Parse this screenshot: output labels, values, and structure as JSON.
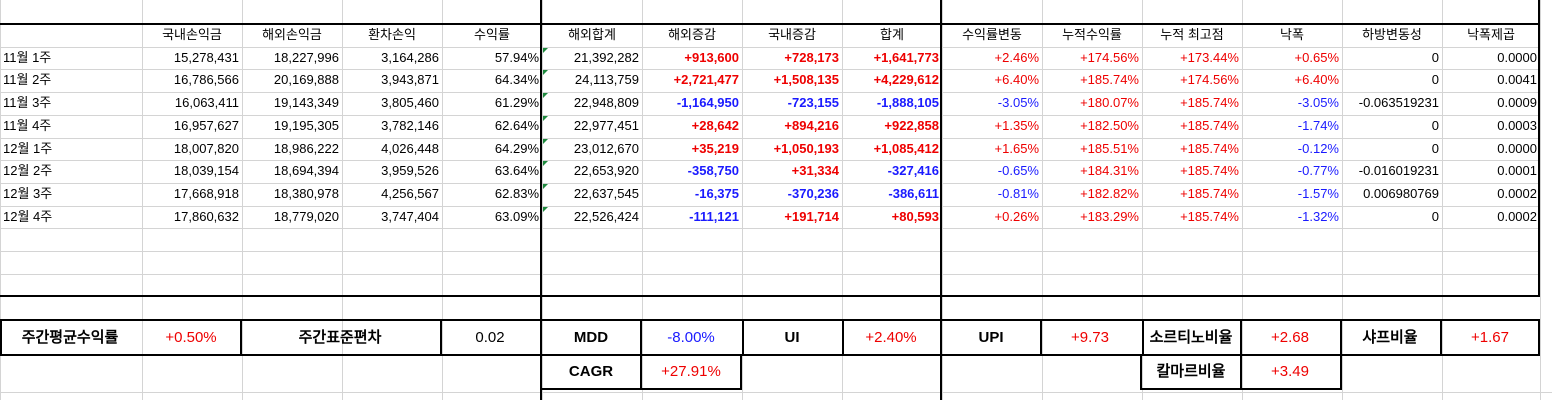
{
  "table": {
    "headers": [
      "",
      "국내손익금",
      "해외손익금",
      "환차손익",
      "수익률",
      "해외합계",
      "해외증감",
      "국내증감",
      "합계",
      "수익률변동",
      "누적수익률",
      "누적 최고점",
      "낙폭",
      "하방변동성",
      "낙폭제곱"
    ],
    "rows": [
      [
        "11월 1주",
        "15,278,431",
        "18,227,996",
        "3,164,286",
        "57.94%",
        "21,392,282",
        "+913,600",
        "+728,173",
        "+1,641,773",
        "+2.46%",
        "+174.56%",
        "+173.44%",
        "+0.65%",
        "0",
        "0.0000"
      ],
      [
        "11월 2주",
        "16,786,566",
        "20,169,888",
        "3,943,871",
        "64.34%",
        "24,113,759",
        "+2,721,477",
        "+1,508,135",
        "+4,229,612",
        "+6.40%",
        "+185.74%",
        "+174.56%",
        "+6.40%",
        "0",
        "0.0041"
      ],
      [
        "11월 3주",
        "16,063,411",
        "19,143,349",
        "3,805,460",
        "61.29%",
        "22,948,809",
        "-1,164,950",
        "-723,155",
        "-1,888,105",
        "-3.05%",
        "+180.07%",
        "+185.74%",
        "-3.05%",
        "-0.063519231",
        "0.0009"
      ],
      [
        "11월 4주",
        "16,957,627",
        "19,195,305",
        "3,782,146",
        "62.64%",
        "22,977,451",
        "+28,642",
        "+894,216",
        "+922,858",
        "+1.35%",
        "+182.50%",
        "+185.74%",
        "-1.74%",
        "0",
        "0.0003"
      ],
      [
        "12월 1주",
        "18,007,820",
        "18,986,222",
        "4,026,448",
        "64.29%",
        "23,012,670",
        "+35,219",
        "+1,050,193",
        "+1,085,412",
        "+1.65%",
        "+185.51%",
        "+185.74%",
        "-0.12%",
        "0",
        "0.0000"
      ],
      [
        "12월 2주",
        "18,039,154",
        "18,694,394",
        "3,959,526",
        "63.64%",
        "22,653,920",
        "-358,750",
        "+31,334",
        "-327,416",
        "-0.65%",
        "+184.31%",
        "+185.74%",
        "-0.77%",
        "-0.016019231",
        "0.0001"
      ],
      [
        "12월 3주",
        "17,668,918",
        "18,380,978",
        "4,256,567",
        "62.83%",
        "22,637,545",
        "-16,375",
        "-370,236",
        "-386,611",
        "-0.81%",
        "+182.82%",
        "+185.74%",
        "-1.57%",
        "0.006980769",
        "0.0002"
      ],
      [
        "12월 4주",
        "17,860,632",
        "18,779,020",
        "3,747,404",
        "63.09%",
        "22,526,424",
        "-111,121",
        "+191,714",
        "+80,593",
        "+0.26%",
        "+183.29%",
        "+185.74%",
        "-1.32%",
        "0",
        "0.0002"
      ]
    ]
  },
  "summary": {
    "weekly_avg_return_label": "주간평균수익률",
    "weekly_avg_return_value": "+0.50%",
    "weekly_std_label": "주간표준편차",
    "weekly_std_value": "0.02",
    "mdd_label": "MDD",
    "mdd_value": "-8.00%",
    "ui_label": "UI",
    "ui_value": "+2.40%",
    "upi_label": "UPI",
    "upi_value": "+9.73",
    "sortino_label": "소르티노비율",
    "sortino_value": "+2.68",
    "sharpe_label": "샤프비율",
    "sharpe_value": "+1.67",
    "cagr_label": "CAGR",
    "cagr_value": "+27.91%",
    "calmar_label": "칼마르비율",
    "calmar_value": "+3.49"
  },
  "colors": {
    "positive": "#ee0000",
    "negative": "#1a1aff",
    "grid": "#d4d4d4",
    "flag": "#1e8a3e"
  }
}
